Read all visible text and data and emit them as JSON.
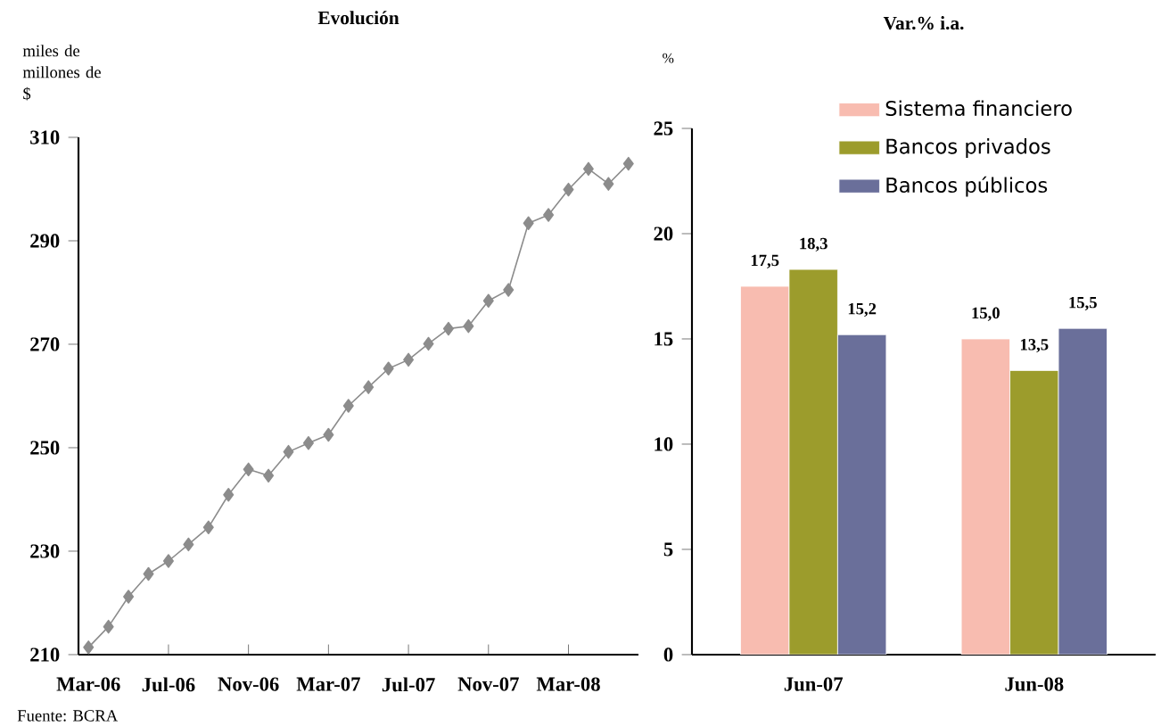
{
  "chart_data": [
    {
      "type": "line",
      "title": "Evolución",
      "ylabel": "miles de millones de $",
      "marker": "diamond",
      "x": [
        "2006-03",
        "2006-04",
        "2006-05",
        "2006-06",
        "2006-07",
        "2006-08",
        "2006-09",
        "2006-10",
        "2006-11",
        "2006-12",
        "2007-01",
        "2007-02",
        "2007-03",
        "2007-04",
        "2007-05",
        "2007-06",
        "2007-07",
        "2007-08",
        "2007-09",
        "2007-10",
        "2007-11",
        "2007-12",
        "2008-01",
        "2008-02",
        "2008-03",
        "2008-04",
        "2008-05",
        "2008-06"
      ],
      "series": [
        {
          "color": "#8c8c8c",
          "values": [
            211.4,
            215.4,
            221.2,
            225.6,
            228.1,
            231.3,
            234.6,
            240.9,
            245.8,
            244.6,
            249.2,
            250.9,
            252.5,
            258.1,
            261.7,
            265.3,
            267.0,
            270.1,
            273.0,
            273.5,
            278.4,
            280.5,
            293.4,
            295.0,
            299.9,
            303.9,
            301.0,
            304.9
          ]
        }
      ],
      "xlim": [
        "2006-02-16",
        "2008-06-16"
      ],
      "xticks": [
        {
          "value": "2006-03",
          "label": "Mar-06"
        },
        {
          "value": "2006-07",
          "label": "Jul-06"
        },
        {
          "value": "2006-11",
          "label": "Nov-06"
        },
        {
          "value": "2007-03",
          "label": "Mar-07"
        },
        {
          "value": "2007-07",
          "label": "Jul-07"
        },
        {
          "value": "2007-11",
          "label": "Nov-07"
        },
        {
          "value": "2008-03",
          "label": "Mar-08"
        }
      ],
      "ylim": [
        210,
        310
      ],
      "yticks": [
        210,
        230,
        250,
        270,
        290,
        310
      ],
      "annotations": [
        "Fuente: BCRA"
      ]
    },
    {
      "type": "bar",
      "title": "Var.% i.a.",
      "ylabel": "%",
      "categories": [
        "Jun-07",
        "Jun-08"
      ],
      "legend": "top",
      "series": [
        {
          "name": "Sistema financiero",
          "color": "#f8bcb0",
          "values": [
            17.5,
            15.0
          ],
          "value_labels": [
            "17,5",
            "15,0"
          ]
        },
        {
          "name": "Bancos privados",
          "color": "#9c9c2c",
          "values": [
            18.3,
            13.5
          ],
          "value_labels": [
            "18,3",
            "13,5"
          ]
        },
        {
          "name": "Bancos públicos",
          "color": "#6a6f9a",
          "values": [
            15.2,
            15.5
          ],
          "value_labels": [
            "15,2",
            "15,5"
          ]
        }
      ],
      "ylim": [
        0,
        25
      ],
      "yticks": [
        0,
        5,
        10,
        15,
        20,
        25
      ]
    }
  ]
}
